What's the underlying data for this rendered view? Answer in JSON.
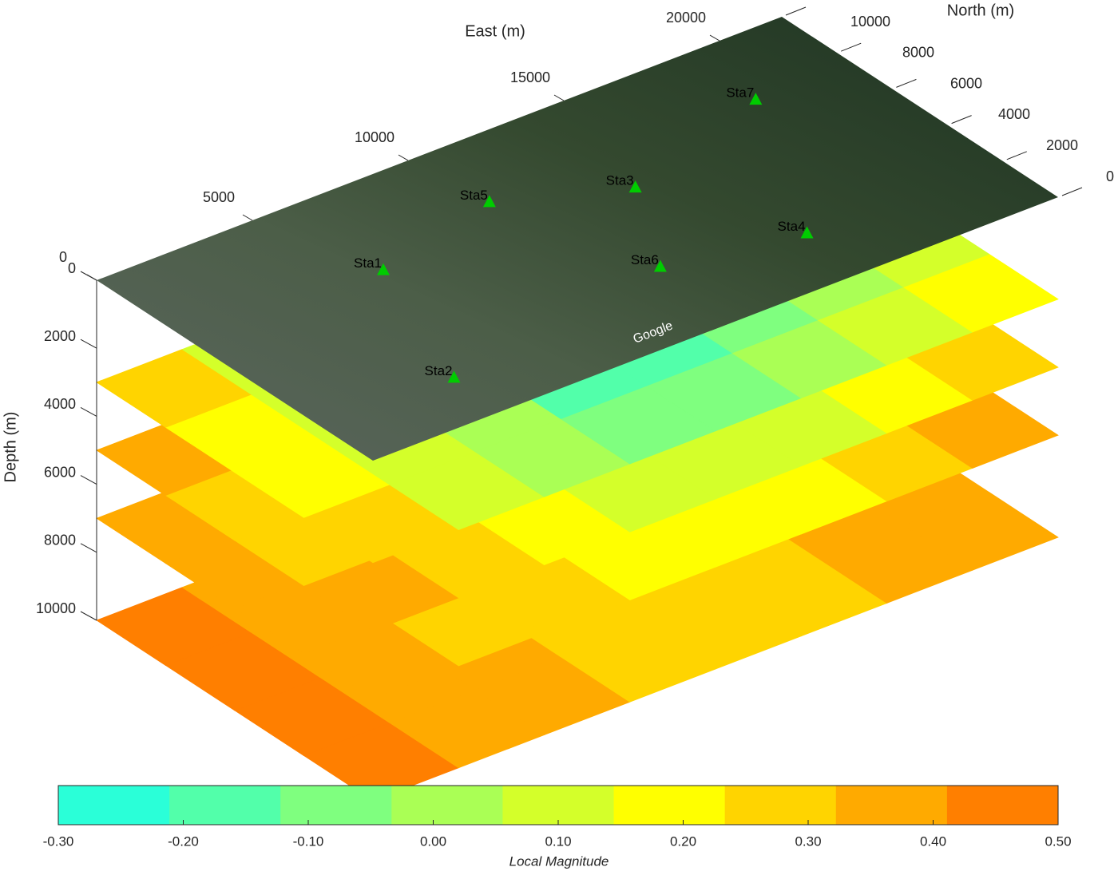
{
  "chart_data": {
    "type": "contour3d",
    "x_label": "East (m)",
    "y_label": "North (m)",
    "z_label": "Depth (m)",
    "xlim": [
      0,
      22000
    ],
    "ylim": [
      0,
      10000
    ],
    "zlim": [
      0,
      10000
    ],
    "xticks": [
      0,
      5000,
      10000,
      15000,
      20000
    ],
    "yticks": [
      0,
      2000,
      4000,
      6000,
      8000,
      10000
    ],
    "zticks": [
      0,
      2000,
      4000,
      6000,
      8000,
      10000
    ],
    "map_attribution": "Google",
    "stations": [
      {
        "name": "Sta1",
        "east": 6100,
        "north": 6500
      },
      {
        "name": "Sta2",
        "east": 4200,
        "north": 1800
      },
      {
        "name": "Sta3",
        "east": 13750,
        "north": 6000
      },
      {
        "name": "Sta4",
        "east": 15800,
        "north": 2100
      },
      {
        "name": "Sta5",
        "east": 10350,
        "north": 7450
      },
      {
        "name": "Sta6",
        "east": 11800,
        "north": 2900
      },
      {
        "name": "Sta7",
        "east": 18900,
        "north": 7450
      }
    ],
    "station_color": "#00cc00",
    "slices": [
      {
        "depth": 3000,
        "values": [
          [
            0.26,
            0.14,
            0.03,
            -0.05,
            -0.08,
            -0.03,
            0.06,
            0.17
          ],
          [
            0.23,
            0.11,
            -0.01,
            -0.13,
            -0.19,
            -0.1,
            0.02,
            0.14
          ],
          [
            0.23,
            0.11,
            -0.01,
            -0.13,
            -0.19,
            -0.1,
            0.02,
            0.14
          ],
          [
            0.26,
            0.14,
            0.03,
            -0.05,
            -0.08,
            -0.03,
            0.06,
            0.17
          ]
        ]
      },
      {
        "depth": 5000,
        "values": [
          [
            0.34,
            0.26,
            0.17,
            0.11,
            0.08,
            0.12,
            0.19,
            0.28
          ],
          [
            0.32,
            0.23,
            0.13,
            0.04,
            0.0,
            0.07,
            0.16,
            0.25
          ],
          [
            0.32,
            0.23,
            0.13,
            0.04,
            0.0,
            0.07,
            0.16,
            0.25
          ],
          [
            0.34,
            0.26,
            0.17,
            0.11,
            0.08,
            0.12,
            0.19,
            0.28
          ]
        ]
      },
      {
        "depth": 7000,
        "values": [
          [
            0.39,
            0.32,
            0.26,
            0.2,
            0.19,
            0.22,
            0.28,
            0.34
          ],
          [
            0.38,
            0.3,
            0.23,
            0.16,
            0.12,
            0.17,
            0.25,
            0.32
          ],
          [
            0.38,
            0.3,
            0.23,
            0.16,
            0.12,
            0.17,
            0.25,
            0.32
          ],
          [
            0.39,
            0.32,
            0.26,
            0.2,
            0.19,
            0.22,
            0.28,
            0.34
          ]
        ]
      },
      {
        "depth": 10000,
        "values": [
          [
            0.44,
            0.39,
            0.35,
            0.31,
            0.3,
            0.32,
            0.36,
            0.41
          ],
          [
            0.43,
            0.38,
            0.33,
            0.27,
            0.25,
            0.29,
            0.34,
            0.39
          ],
          [
            0.43,
            0.38,
            0.33,
            0.27,
            0.25,
            0.29,
            0.34,
            0.39
          ],
          [
            0.44,
            0.39,
            0.35,
            0.31,
            0.3,
            0.32,
            0.36,
            0.41
          ]
        ]
      }
    ],
    "colormap": [
      "#2affd8",
      "#52ffaa",
      "#7fff7f",
      "#aaff55",
      "#d4ff2a",
      "#ffff00",
      "#ffd400",
      "#ffaa00",
      "#ff7f00"
    ],
    "clim": [
      -0.3,
      0.5
    ],
    "colorbar_label": "Local Magnitude",
    "colorbar_ticks": [
      {
        "value": -0.3,
        "label": "-0.30"
      },
      {
        "value": -0.2,
        "label": "-0.20"
      },
      {
        "value": -0.1,
        "label": "-0.10"
      },
      {
        "value": 0,
        "label": "0.00"
      },
      {
        "value": 0.1,
        "label": "0.10"
      },
      {
        "value": 0.2,
        "label": "0.20"
      },
      {
        "value": 0.3,
        "label": "0.30"
      },
      {
        "value": 0.4,
        "label": "0.40"
      },
      {
        "value": 0.5,
        "label": "0.50"
      }
    ]
  }
}
